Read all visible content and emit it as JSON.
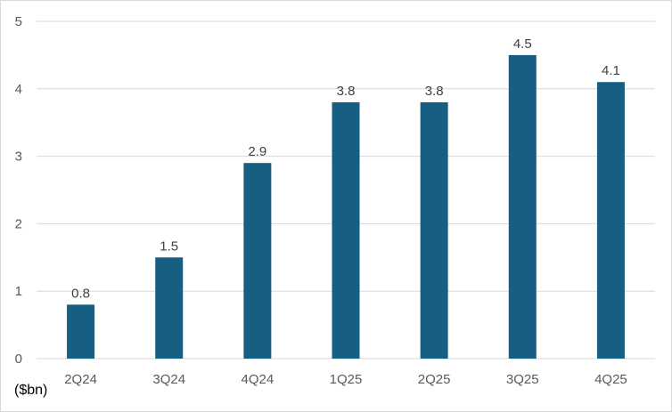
{
  "chart_data": {
    "type": "bar",
    "categories": [
      "2Q24",
      "3Q24",
      "4Q24",
      "1Q25",
      "2Q25",
      "3Q25",
      "4Q25"
    ],
    "values": [
      0.8,
      1.5,
      2.9,
      3.8,
      3.8,
      4.5,
      4.1
    ],
    "data_labels": [
      "0.8",
      "1.5",
      "2.9",
      "3.8",
      "3.8",
      "4.5",
      "4.1"
    ],
    "title": "",
    "xlabel": "",
    "ylabel": "($bn)",
    "ylim": [
      0,
      5
    ],
    "yticks": [
      "0",
      "1",
      "2",
      "3",
      "4",
      "5"
    ],
    "grid": "horizontal",
    "legend": "none",
    "bar_color": "#175f82",
    "grid_color": "#d9d9d9"
  }
}
